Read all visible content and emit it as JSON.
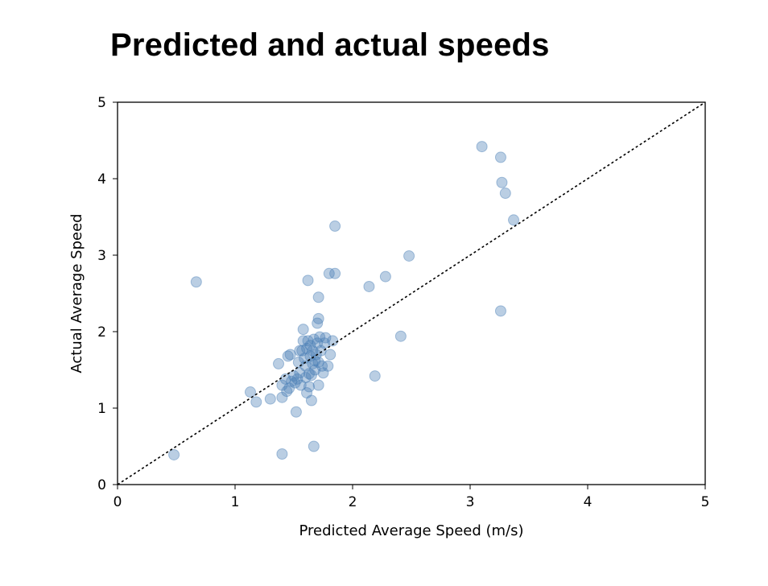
{
  "slide": {
    "title": "Predicted and actual speeds"
  },
  "colors": {
    "point": "#4a7fb5",
    "frame": "#000000",
    "reference_line": "#000000"
  },
  "chart_data": {
    "type": "scatter",
    "title": "",
    "xlabel": "Predicted Average Speed (m/s)",
    "ylabel": "Actual Average Speed",
    "xlim": [
      0,
      5
    ],
    "ylim": [
      0,
      5
    ],
    "xticks": [
      "0",
      "1",
      "2",
      "3",
      "4",
      "5"
    ],
    "yticks": [
      "0",
      "1",
      "2",
      "3",
      "4",
      "5"
    ],
    "grid": false,
    "reference_line": {
      "style": "dotted",
      "from": [
        0,
        0
      ],
      "to": [
        5,
        5
      ]
    },
    "series": [
      {
        "points": [
          [
            0.48,
            0.39
          ],
          [
            0.67,
            2.65
          ],
          [
            1.13,
            1.21
          ],
          [
            1.18,
            1.08
          ],
          [
            1.3,
            1.12
          ],
          [
            1.37,
            1.58
          ],
          [
            1.4,
            1.3
          ],
          [
            1.4,
            1.14
          ],
          [
            1.4,
            0.4
          ],
          [
            1.43,
            1.38
          ],
          [
            1.44,
            1.22
          ],
          [
            1.45,
            1.68
          ],
          [
            1.46,
            1.26
          ],
          [
            1.47,
            1.7
          ],
          [
            1.48,
            1.35
          ],
          [
            1.5,
            1.42
          ],
          [
            1.51,
            1.33
          ],
          [
            1.52,
            0.95
          ],
          [
            1.53,
            1.38
          ],
          [
            1.54,
            1.6
          ],
          [
            1.55,
            1.75
          ],
          [
            1.55,
            1.46
          ],
          [
            1.56,
            1.3
          ],
          [
            1.57,
            1.75
          ],
          [
            1.58,
            2.03
          ],
          [
            1.58,
            1.88
          ],
          [
            1.59,
            1.65
          ],
          [
            1.6,
            1.4
          ],
          [
            1.6,
            1.55
          ],
          [
            1.61,
            1.78
          ],
          [
            1.61,
            1.2
          ],
          [
            1.62,
            2.67
          ],
          [
            1.62,
            1.88
          ],
          [
            1.63,
            1.45
          ],
          [
            1.63,
            1.28
          ],
          [
            1.64,
            1.82
          ],
          [
            1.64,
            1.68
          ],
          [
            1.65,
            1.1
          ],
          [
            1.65,
            1.43
          ],
          [
            1.66,
            1.75
          ],
          [
            1.66,
            1.58
          ],
          [
            1.67,
            0.5
          ],
          [
            1.67,
            1.9
          ],
          [
            1.68,
            1.62
          ],
          [
            1.68,
            1.5
          ],
          [
            1.69,
            1.7
          ],
          [
            1.7,
            2.11
          ],
          [
            1.7,
            1.85
          ],
          [
            1.71,
            2.17
          ],
          [
            1.71,
            2.45
          ],
          [
            1.71,
            1.6
          ],
          [
            1.71,
            1.3
          ],
          [
            1.72,
            1.93
          ],
          [
            1.73,
            1.75
          ],
          [
            1.74,
            1.55
          ],
          [
            1.75,
            1.46
          ],
          [
            1.76,
            1.85
          ],
          [
            1.77,
            1.92
          ],
          [
            1.79,
            1.55
          ],
          [
            1.8,
            2.76
          ],
          [
            1.81,
            1.7
          ],
          [
            1.83,
            1.88
          ],
          [
            1.85,
            2.76
          ],
          [
            1.85,
            3.38
          ],
          [
            2.14,
            2.59
          ],
          [
            2.19,
            1.42
          ],
          [
            2.28,
            2.72
          ],
          [
            2.41,
            1.94
          ],
          [
            2.48,
            2.99
          ],
          [
            3.1,
            4.42
          ],
          [
            3.26,
            4.28
          ],
          [
            3.26,
            2.27
          ],
          [
            3.27,
            3.95
          ],
          [
            3.3,
            3.81
          ],
          [
            3.37,
            3.46
          ]
        ]
      }
    ]
  }
}
